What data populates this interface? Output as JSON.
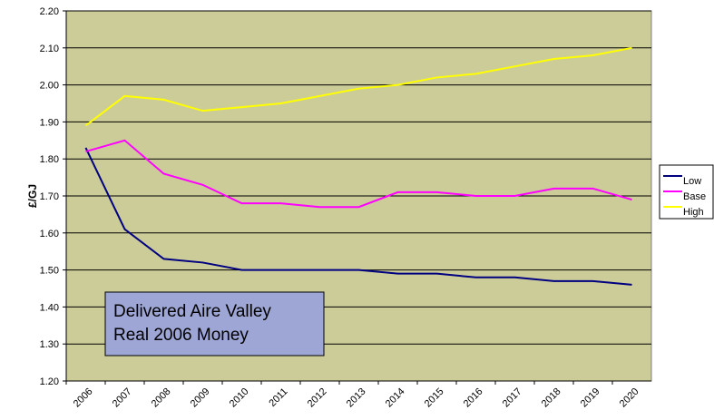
{
  "chart_data": {
    "type": "line",
    "y_label": "£/GJ",
    "annotation": [
      "Delivered Aire Valley",
      "Real 2006 Money"
    ],
    "categories": [
      "2006",
      "2007",
      "2008",
      "2009",
      "2010",
      "2011",
      "2012",
      "2013",
      "2014",
      "2015",
      "2016",
      "2017",
      "2018",
      "2019",
      "2020"
    ],
    "series": [
      {
        "name": "Low",
        "color": "#000080",
        "values": [
          1.83,
          1.61,
          1.53,
          1.52,
          1.5,
          1.5,
          1.5,
          1.5,
          1.49,
          1.49,
          1.48,
          1.48,
          1.47,
          1.47,
          1.46
        ]
      },
      {
        "name": "Base",
        "color": "#ff00ff",
        "values": [
          1.82,
          1.85,
          1.76,
          1.73,
          1.68,
          1.68,
          1.67,
          1.67,
          1.71,
          1.71,
          1.7,
          1.7,
          1.72,
          1.72,
          1.69
        ]
      },
      {
        "name": "High",
        "color": "#ffff00",
        "values": [
          1.89,
          1.97,
          1.96,
          1.93,
          1.94,
          1.95,
          1.97,
          1.99,
          2.0,
          2.02,
          2.03,
          2.05,
          2.07,
          2.08,
          2.1
        ]
      }
    ],
    "ylim": [
      1.2,
      2.2
    ],
    "yticks": [
      {
        "value": 1.2,
        "label": "1.20"
      },
      {
        "value": 1.3,
        "label": "1.30"
      },
      {
        "value": 1.4,
        "label": "1.40"
      },
      {
        "value": 1.5,
        "label": "1.50"
      },
      {
        "value": 1.6,
        "label": "1.60"
      },
      {
        "value": 1.7,
        "label": "1.70"
      },
      {
        "value": 1.8,
        "label": "1.80"
      },
      {
        "value": 1.9,
        "label": "1.90"
      },
      {
        "value": 2.0,
        "label": "2.00"
      },
      {
        "value": 2.1,
        "label": "2.10"
      },
      {
        "value": 2.2,
        "label": "2.20"
      }
    ],
    "grid": true,
    "legend": "right",
    "background": "#cccc99"
  }
}
